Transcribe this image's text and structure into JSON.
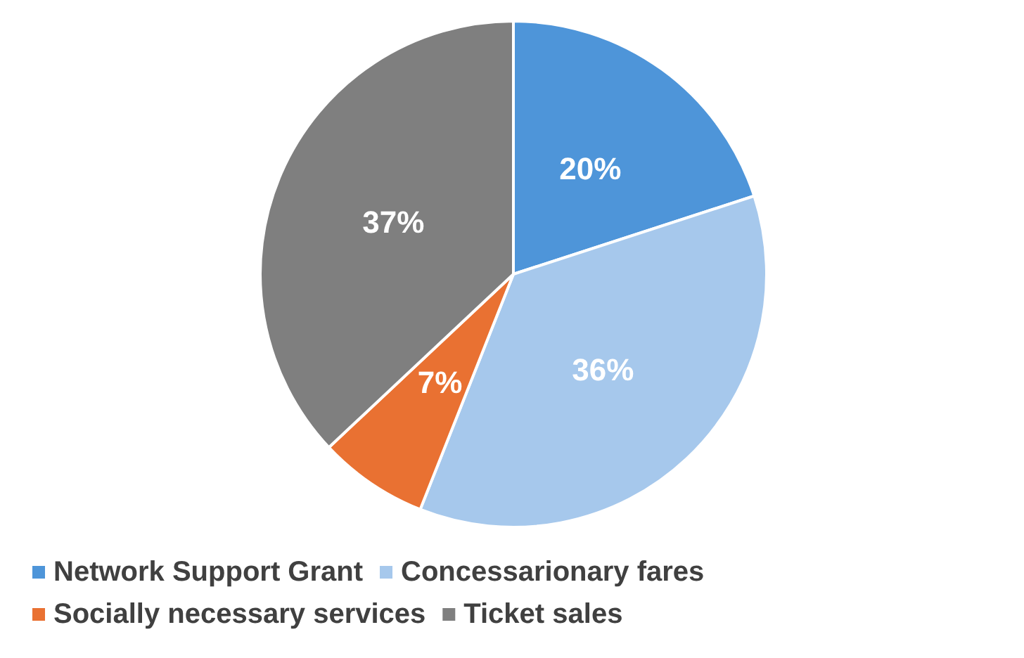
{
  "chart_data": {
    "type": "pie",
    "categories": [
      "Network Support Grant",
      "Concessarionary fares",
      "Socially necessary services",
      "Ticket sales"
    ],
    "values": [
      20,
      36,
      7,
      37
    ],
    "colors": [
      "#4e95d9",
      "#a6c8ec",
      "#e97132",
      "#7f7f7f"
    ],
    "value_labels": [
      "20%",
      "36%",
      "7%",
      "37%"
    ],
    "legend": "bottom"
  }
}
